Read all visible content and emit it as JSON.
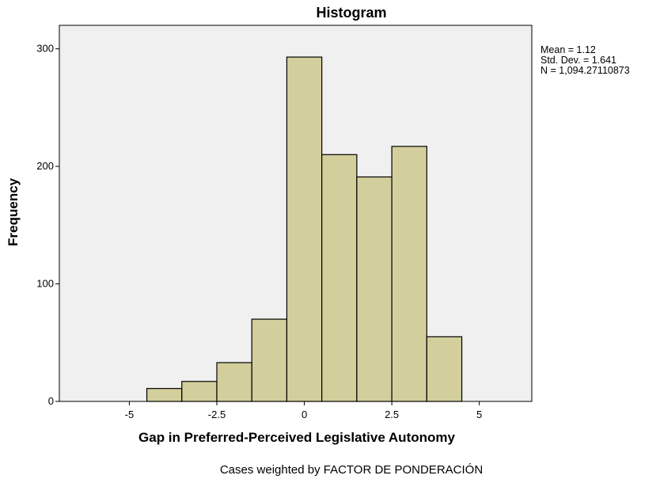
{
  "chart_data": {
    "type": "bar",
    "title": "Histogram",
    "xlabel": "Gap in Preferred-Perceived Legislative Autonomy",
    "ylabel": "Frequency",
    "xlim": [
      -7.0,
      6.5
    ],
    "ylim": [
      0,
      320
    ],
    "bin_width": 1,
    "bins": [
      {
        "x0": -4.5,
        "x1": -3.5,
        "value": 11
      },
      {
        "x0": -3.5,
        "x1": -2.5,
        "value": 17
      },
      {
        "x0": -2.5,
        "x1": -1.5,
        "value": 33
      },
      {
        "x0": -1.5,
        "x1": -0.5,
        "value": 70
      },
      {
        "x0": -0.5,
        "x1": 0.5,
        "value": 293
      },
      {
        "x0": 0.5,
        "x1": 1.5,
        "value": 210
      },
      {
        "x0": 1.5,
        "x1": 2.5,
        "value": 191
      },
      {
        "x0": 2.5,
        "x1": 3.5,
        "value": 217
      },
      {
        "x0": 3.5,
        "x1": 4.5,
        "value": 55
      }
    ],
    "x_ticks": [
      {
        "value": -5,
        "label": "-5"
      },
      {
        "value": -2.5,
        "label": "-2.5"
      },
      {
        "value": 0,
        "label": "0"
      },
      {
        "value": 2.5,
        "label": "2.5"
      },
      {
        "value": 5,
        "label": "5"
      }
    ],
    "y_ticks": [
      {
        "value": 0,
        "label": "0"
      },
      {
        "value": 100,
        "label": "100"
      },
      {
        "value": 200,
        "label": "200"
      },
      {
        "value": 300,
        "label": "300"
      }
    ],
    "stats": [
      "Mean = 1.12",
      "Std. Dev. = 1.641",
      "N = 1,094.27110873"
    ],
    "footnote": "Cases weighted by FACTOR DE PONDERACIÓN",
    "grid": false,
    "colors": {
      "bar_fill": "#d3cf9d",
      "bar_stroke": "#000000",
      "plot_background": "#f0f0f0"
    }
  }
}
